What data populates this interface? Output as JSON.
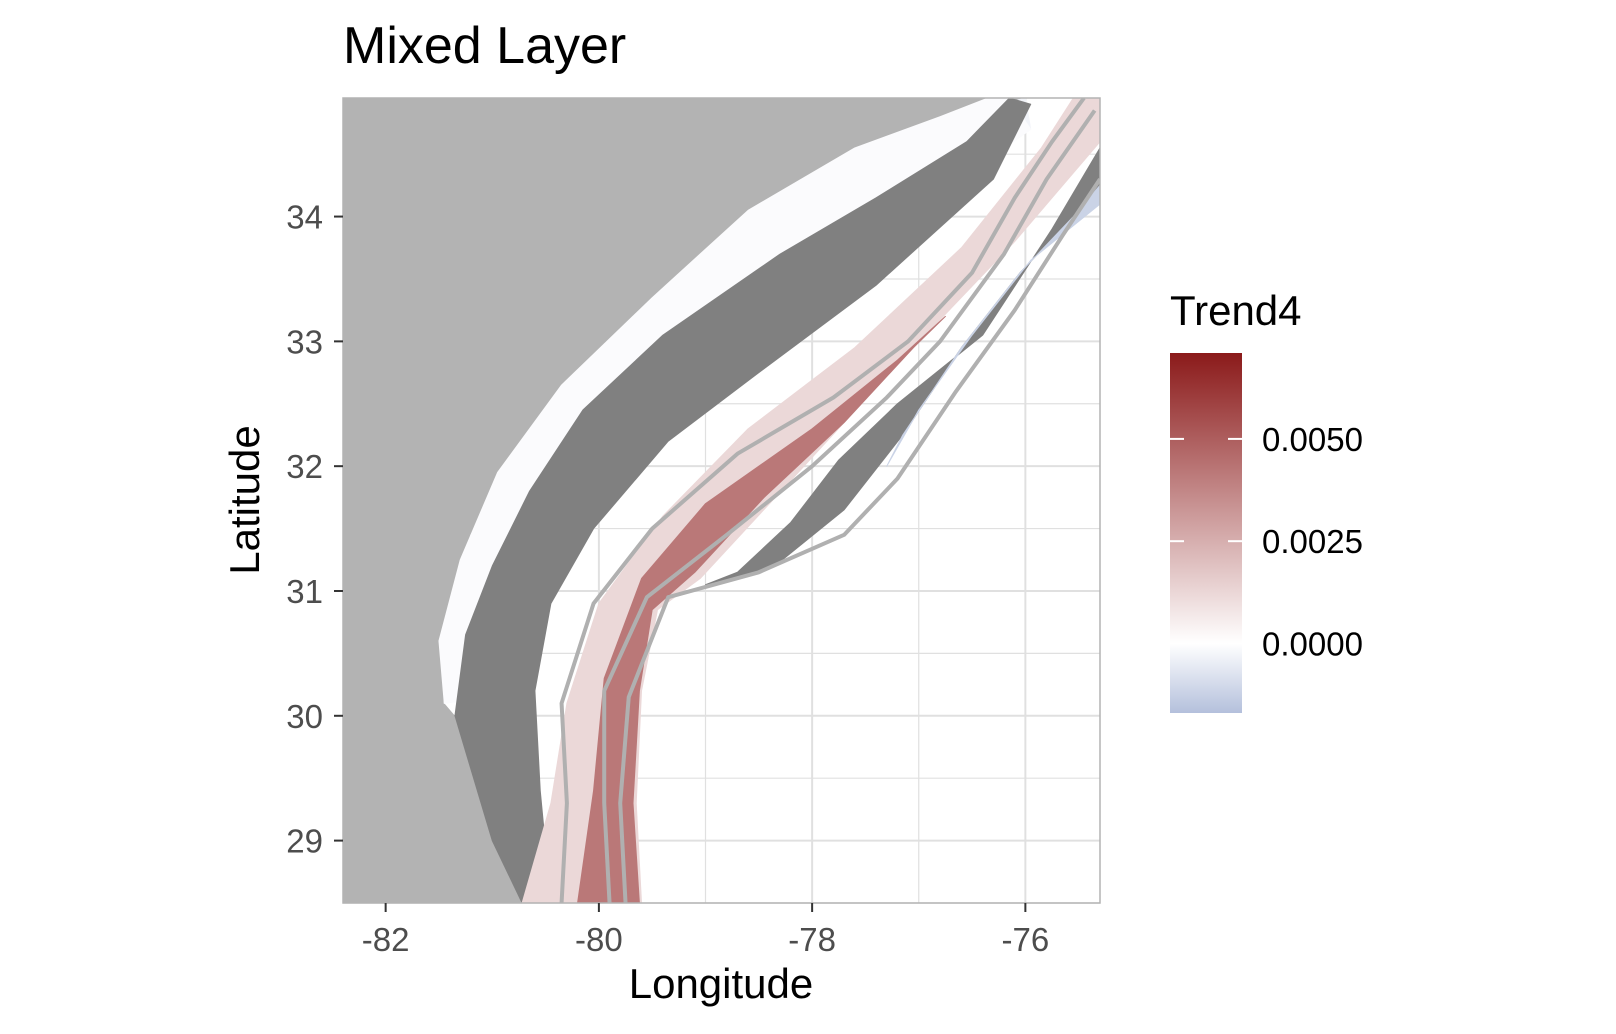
{
  "chart_data": {
    "type": "heatmap",
    "title": "Mixed Layer",
    "xlabel": "Longitude",
    "ylabel": "Latitude",
    "xlim": [
      -82.4,
      -75.3
    ],
    "ylim": [
      28.5,
      34.95
    ],
    "x_ticks": [
      {
        "value": -82,
        "label": "-82"
      },
      {
        "value": -80,
        "label": "-80"
      },
      {
        "value": -78,
        "label": "-78"
      },
      {
        "value": -76,
        "label": "-76"
      }
    ],
    "y_ticks": [
      {
        "value": 29,
        "label": "29"
      },
      {
        "value": 30,
        "label": "30"
      },
      {
        "value": 31,
        "label": "31"
      },
      {
        "value": 32,
        "label": "32"
      },
      {
        "value": 33,
        "label": "33"
      },
      {
        "value": 34,
        "label": "34"
      }
    ],
    "grid": true,
    "legend": {
      "title": "Trend4",
      "position": "right",
      "range": [
        -0.0017,
        0.0071
      ],
      "breaks": [
        {
          "value": 0.005,
          "label": "0.0050"
        },
        {
          "value": 0.0025,
          "label": "0.0025"
        },
        {
          "value": 0.0,
          "label": "0.0000"
        }
      ],
      "low_color": "#b4c0dc",
      "mid_color": "#ffffff",
      "high_color": "#8b1a1a"
    },
    "colors": {
      "land": "#b3b3b3",
      "no_trend": "#808080",
      "contour": "#b0b0b0",
      "grid": "#e0e0e0",
      "panel_border": "#b3b3b3"
    },
    "zones": [
      {
        "name": "nearshore",
        "value": -0.0003,
        "polygon": [
          [
            -81.45,
            30.6
          ],
          [
            -81.2,
            31.45
          ],
          [
            -80.75,
            32.0
          ],
          [
            -80.25,
            32.55
          ],
          [
            -79.7,
            32.95
          ],
          [
            -79.0,
            33.55
          ],
          [
            -78.2,
            34.15
          ],
          [
            -77.25,
            34.5
          ],
          [
            -76.45,
            34.85
          ],
          [
            -76.0,
            34.95
          ],
          [
            -75.95,
            34.7
          ],
          [
            -76.6,
            34.3
          ],
          [
            -77.5,
            33.95
          ],
          [
            -78.6,
            33.4
          ],
          [
            -79.5,
            32.85
          ],
          [
            -80.1,
            32.4
          ],
          [
            -80.5,
            31.95
          ],
          [
            -80.75,
            31.45
          ],
          [
            -80.95,
            30.8
          ],
          [
            -81.05,
            30.15
          ],
          [
            -81.45,
            30.1
          ]
        ]
      },
      {
        "name": "inner-shelf",
        "value": -0.0001,
        "polygon": [
          [
            -81.45,
            30.1
          ],
          [
            -81.05,
            30.15
          ],
          [
            -80.95,
            30.8
          ],
          [
            -80.75,
            31.45
          ],
          [
            -80.5,
            31.95
          ],
          [
            -80.1,
            32.4
          ],
          [
            -79.5,
            32.85
          ],
          [
            -78.6,
            33.4
          ],
          [
            -77.5,
            33.95
          ],
          [
            -76.6,
            34.3
          ],
          [
            -75.95,
            34.7
          ],
          [
            -76.15,
            34.95
          ],
          [
            -76.35,
            34.95
          ],
          [
            -76.8,
            34.8
          ],
          [
            -77.6,
            34.55
          ],
          [
            -78.6,
            34.05
          ],
          [
            -79.5,
            33.35
          ],
          [
            -80.35,
            32.65
          ],
          [
            -80.95,
            31.95
          ],
          [
            -81.3,
            31.25
          ],
          [
            -81.5,
            30.6
          ]
        ]
      },
      {
        "name": "mid-shelf-no-trend",
        "value": null,
        "polygon": [
          [
            -81.35,
            30.0
          ],
          [
            -81.0,
            29.0
          ],
          [
            -80.72,
            28.5
          ],
          [
            -80.45,
            28.5
          ],
          [
            -80.55,
            29.4
          ],
          [
            -80.6,
            30.2
          ],
          [
            -80.45,
            30.9
          ],
          [
            -80.05,
            31.5
          ],
          [
            -79.35,
            32.2
          ],
          [
            -78.5,
            32.75
          ],
          [
            -77.4,
            33.45
          ],
          [
            -76.3,
            34.3
          ],
          [
            -75.95,
            34.9
          ],
          [
            -76.15,
            34.95
          ],
          [
            -76.55,
            34.6
          ],
          [
            -77.4,
            34.15
          ],
          [
            -78.3,
            33.7
          ],
          [
            -79.4,
            33.05
          ],
          [
            -80.15,
            32.45
          ],
          [
            -80.65,
            31.8
          ],
          [
            -81.0,
            31.2
          ],
          [
            -81.25,
            30.65
          ]
        ]
      },
      {
        "name": "outer-shelf",
        "value": 0.0012,
        "polygon": [
          [
            -80.72,
            28.5
          ],
          [
            -80.45,
            29.3
          ],
          [
            -80.3,
            30.1
          ],
          [
            -80.0,
            30.9
          ],
          [
            -79.4,
            31.6
          ],
          [
            -78.6,
            32.3
          ],
          [
            -77.6,
            32.95
          ],
          [
            -76.6,
            33.75
          ],
          [
            -75.85,
            34.55
          ],
          [
            -75.55,
            34.95
          ],
          [
            -75.3,
            34.95
          ],
          [
            -75.3,
            34.6
          ],
          [
            -76.1,
            33.8
          ],
          [
            -77.05,
            32.95
          ],
          [
            -77.7,
            32.35
          ],
          [
            -78.4,
            31.7
          ],
          [
            -79.05,
            31.1
          ],
          [
            -79.45,
            30.85
          ],
          [
            -79.6,
            30.2
          ],
          [
            -79.65,
            29.3
          ],
          [
            -79.6,
            28.5
          ]
        ]
      },
      {
        "name": "shelf-break-core",
        "value": 0.0042,
        "polygon": [
          [
            -80.2,
            28.5
          ],
          [
            -80.05,
            29.4
          ],
          [
            -79.95,
            30.3
          ],
          [
            -79.6,
            31.1
          ],
          [
            -79.0,
            31.7
          ],
          [
            -78.0,
            32.3
          ],
          [
            -77.2,
            32.85
          ],
          [
            -76.75,
            33.2
          ],
          [
            -77.05,
            32.95
          ],
          [
            -77.7,
            32.35
          ],
          [
            -78.45,
            31.75
          ],
          [
            -79.1,
            31.15
          ],
          [
            -79.5,
            30.85
          ],
          [
            -79.62,
            30.2
          ],
          [
            -79.68,
            29.3
          ],
          [
            -79.62,
            28.5
          ]
        ]
      },
      {
        "name": "slope-no-trend",
        "value": null,
        "polygon": [
          [
            -75.3,
            34.55
          ],
          [
            -75.75,
            33.9
          ],
          [
            -76.4,
            33.05
          ],
          [
            -77.2,
            32.5
          ],
          [
            -77.75,
            32.05
          ],
          [
            -78.2,
            31.55
          ],
          [
            -78.7,
            31.15
          ],
          [
            -79.0,
            31.05
          ],
          [
            -78.35,
            31.2
          ],
          [
            -77.7,
            31.65
          ],
          [
            -77.15,
            32.25
          ],
          [
            -76.6,
            32.95
          ],
          [
            -76.05,
            33.55
          ],
          [
            -75.55,
            34.0
          ],
          [
            -75.3,
            34.25
          ]
        ]
      },
      {
        "name": "offshore-negative",
        "value": -0.0012,
        "polygon": [
          [
            -75.3,
            34.25
          ],
          [
            -75.55,
            34.0
          ],
          [
            -76.05,
            33.55
          ],
          [
            -76.6,
            32.95
          ],
          [
            -77.15,
            32.25
          ],
          [
            -77.3,
            32.0
          ],
          [
            -77.0,
            32.45
          ],
          [
            -76.5,
            33.05
          ],
          [
            -75.95,
            33.65
          ],
          [
            -75.3,
            34.1
          ]
        ]
      }
    ],
    "contours": [
      [
        [
          -80.35,
          28.5
        ],
        [
          -80.3,
          29.3
        ],
        [
          -80.35,
          30.1
        ],
        [
          -80.05,
          30.9
        ],
        [
          -79.5,
          31.5
        ],
        [
          -78.7,
          32.1
        ],
        [
          -77.8,
          32.55
        ],
        [
          -77.1,
          33.0
        ],
        [
          -76.5,
          33.55
        ],
        [
          -76.1,
          34.15
        ],
        [
          -75.75,
          34.6
        ],
        [
          -75.45,
          34.95
        ]
      ],
      [
        [
          -79.9,
          28.5
        ],
        [
          -79.95,
          29.3
        ],
        [
          -79.95,
          30.2
        ],
        [
          -79.55,
          30.95
        ],
        [
          -78.8,
          31.45
        ],
        [
          -78.0,
          32.0
        ],
        [
          -77.3,
          32.55
        ],
        [
          -76.8,
          33.0
        ],
        [
          -76.2,
          33.7
        ],
        [
          -75.8,
          34.3
        ],
        [
          -75.35,
          34.85
        ]
      ],
      [
        [
          -79.75,
          28.5
        ],
        [
          -79.8,
          29.3
        ],
        [
          -79.72,
          30.15
        ],
        [
          -79.35,
          30.95
        ],
        [
          -78.5,
          31.15
        ],
        [
          -77.7,
          31.45
        ],
        [
          -77.2,
          31.9
        ],
        [
          -76.65,
          32.6
        ],
        [
          -76.1,
          33.25
        ],
        [
          -75.65,
          33.85
        ],
        [
          -75.3,
          34.3
        ]
      ]
    ]
  }
}
